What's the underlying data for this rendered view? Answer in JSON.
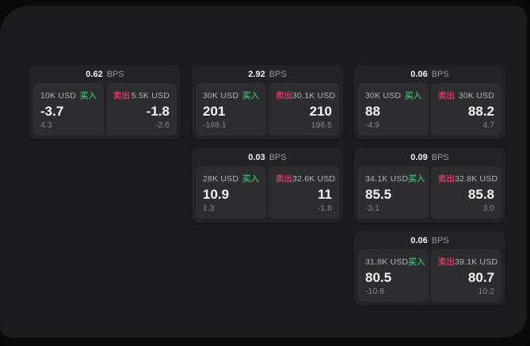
{
  "labels": {
    "bps": "BPS",
    "buy": "买入",
    "sell": "卖出"
  },
  "colors": {
    "backdrop": "#0a0a0b",
    "surface": "#1c1c1e",
    "card": "#232326",
    "panel": "#2d2d30",
    "text_primary": "#f5f5f6",
    "text_secondary": "#b4b4b8",
    "text_muted": "#86868b",
    "buy_green": "#3cab60",
    "sell_red": "#c73e63"
  },
  "cards": [
    {
      "bps": "0.62",
      "buy": {
        "amount": "10K USD",
        "value": "-3.7",
        "sub": "4.3"
      },
      "sell": {
        "amount": "5.5K USD",
        "value": "-1.8",
        "sub": "-2.6"
      }
    },
    {
      "bps": "2.92",
      "buy": {
        "amount": "30K USD",
        "value": "201",
        "sub": "-188.1"
      },
      "sell": {
        "amount": "30.1K USD",
        "value": "210",
        "sub": "196.5"
      }
    },
    {
      "bps": "0.06",
      "buy": {
        "amount": "30K USD",
        "value": "88",
        "sub": "-4.9"
      },
      "sell": {
        "amount": "30K USD",
        "value": "88.2",
        "sub": "4.7"
      }
    },
    {
      "bps": "0.03",
      "buy": {
        "amount": "28K USD",
        "value": "10.9",
        "sub": "1.3"
      },
      "sell": {
        "amount": "32.6K USD",
        "value": "11",
        "sub": "-1.8"
      }
    },
    {
      "bps": "0.09",
      "buy": {
        "amount": "34.1K USD",
        "value": "85.5",
        "sub": "-3.1"
      },
      "sell": {
        "amount": "32.8K USD",
        "value": "85.8",
        "sub": "3.0"
      }
    },
    {
      "bps": "0.06",
      "buy": {
        "amount": "31.8K USD",
        "value": "80.5",
        "sub": "-10.8"
      },
      "sell": {
        "amount": "39.1K USD",
        "value": "80.7",
        "sub": "10.2"
      }
    }
  ]
}
